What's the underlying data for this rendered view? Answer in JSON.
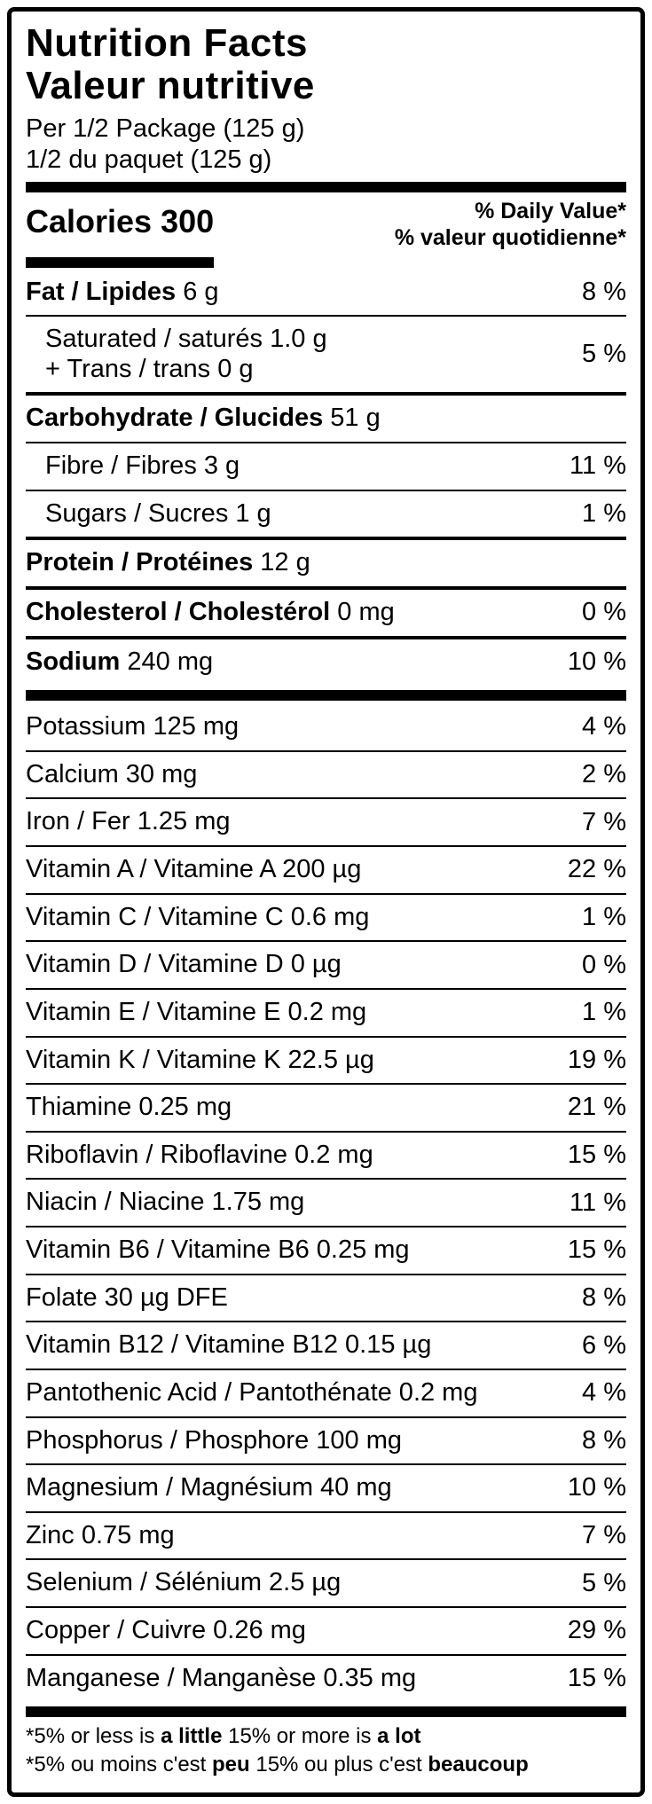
{
  "colors": {
    "foreground": "#000000",
    "background": "#ffffff"
  },
  "header": {
    "title_en": "Nutrition Facts",
    "title_fr": "Valeur nutritive",
    "serving_en": "Per 1/2 Package (125 g)",
    "serving_fr": "1/2 du paquet (125 g)"
  },
  "calories": {
    "label": "Calories 300"
  },
  "daily_value": {
    "line_en": "% Daily Value*",
    "line_fr": "% valeur quotidienne*"
  },
  "rows": [
    {
      "sep": "none",
      "indent": false,
      "percent": "8 %",
      "lines": [
        [
          [
            "b",
            "Fat / Lipides"
          ],
          [
            "r",
            " 6 g"
          ]
        ]
      ]
    },
    {
      "sep": "thin",
      "indent": true,
      "percent": "5 %",
      "lines": [
        [
          [
            "r",
            "Saturated / saturés 1.0 g"
          ]
        ],
        [
          [
            "r",
            "+ Trans / trans 0 g"
          ]
        ]
      ]
    },
    {
      "sep": "med",
      "indent": false,
      "percent": "",
      "lines": [
        [
          [
            "b",
            "Carbohydrate / Glucides"
          ],
          [
            "r",
            " 51 g"
          ]
        ]
      ]
    },
    {
      "sep": "thin",
      "indent": true,
      "percent": "11 %",
      "lines": [
        [
          [
            "r",
            "Fibre / Fibres 3 g"
          ]
        ]
      ]
    },
    {
      "sep": "thin",
      "indent": true,
      "percent": "1 %",
      "lines": [
        [
          [
            "r",
            "Sugars / Sucres 1 g"
          ]
        ]
      ]
    },
    {
      "sep": "med",
      "indent": false,
      "percent": "",
      "lines": [
        [
          [
            "b",
            "Protein / Protéines"
          ],
          [
            "r",
            " 12 g"
          ]
        ]
      ]
    },
    {
      "sep": "med",
      "indent": false,
      "percent": "0 %",
      "lines": [
        [
          [
            "b",
            "Cholesterol / Cholestérol"
          ],
          [
            "r",
            " 0 mg"
          ]
        ]
      ]
    },
    {
      "sep": "med",
      "indent": false,
      "percent": "10 %",
      "lines": [
        [
          [
            "b",
            "Sodium"
          ],
          [
            "r",
            " 240 mg"
          ]
        ]
      ]
    },
    {
      "sep": "thick",
      "indent": false,
      "percent": "4 %",
      "lines": [
        [
          [
            "r",
            "Potassium 125 mg"
          ]
        ]
      ]
    },
    {
      "sep": "thin",
      "indent": false,
      "percent": "2 %",
      "lines": [
        [
          [
            "r",
            "Calcium 30 mg"
          ]
        ]
      ]
    },
    {
      "sep": "thin",
      "indent": false,
      "percent": "7 %",
      "lines": [
        [
          [
            "r",
            "Iron / Fer 1.25 mg"
          ]
        ]
      ]
    },
    {
      "sep": "thin",
      "indent": false,
      "percent": "22 %",
      "lines": [
        [
          [
            "r",
            "Vitamin A / Vitamine A 200 µg"
          ]
        ]
      ]
    },
    {
      "sep": "thin",
      "indent": false,
      "percent": "1 %",
      "lines": [
        [
          [
            "r",
            "Vitamin C / Vitamine C 0.6 mg"
          ]
        ]
      ]
    },
    {
      "sep": "thin",
      "indent": false,
      "percent": "0 %",
      "lines": [
        [
          [
            "r",
            "Vitamin D / Vitamine D 0 µg"
          ]
        ]
      ]
    },
    {
      "sep": "thin",
      "indent": false,
      "percent": "1 %",
      "lines": [
        [
          [
            "r",
            "Vitamin E / Vitamine E 0.2 mg"
          ]
        ]
      ]
    },
    {
      "sep": "thin",
      "indent": false,
      "percent": "19 %",
      "lines": [
        [
          [
            "r",
            "Vitamin K / Vitamine K 22.5 µg"
          ]
        ]
      ]
    },
    {
      "sep": "thin",
      "indent": false,
      "percent": "21 %",
      "lines": [
        [
          [
            "r",
            "Thiamine 0.25 mg"
          ]
        ]
      ]
    },
    {
      "sep": "thin",
      "indent": false,
      "percent": "15 %",
      "lines": [
        [
          [
            "r",
            "Riboflavin / Riboflavine 0.2 mg"
          ]
        ]
      ]
    },
    {
      "sep": "thin",
      "indent": false,
      "percent": "11 %",
      "lines": [
        [
          [
            "r",
            "Niacin / Niacine 1.75 mg"
          ]
        ]
      ]
    },
    {
      "sep": "thin",
      "indent": false,
      "percent": "15 %",
      "lines": [
        [
          [
            "r",
            "Vitamin B6 / Vitamine B6 0.25 mg"
          ]
        ]
      ]
    },
    {
      "sep": "thin",
      "indent": false,
      "percent": "8 %",
      "lines": [
        [
          [
            "r",
            "Folate 30 µg DFE"
          ]
        ]
      ]
    },
    {
      "sep": "thin",
      "indent": false,
      "percent": "6 %",
      "lines": [
        [
          [
            "r",
            "Vitamin B12 / Vitamine B12 0.15 µg"
          ]
        ]
      ]
    },
    {
      "sep": "thin",
      "indent": false,
      "percent": "4 %",
      "lines": [
        [
          [
            "r",
            "Pantothenic Acid / Pantothénate 0.2 mg"
          ]
        ]
      ]
    },
    {
      "sep": "thin",
      "indent": false,
      "percent": "8 %",
      "lines": [
        [
          [
            "r",
            "Phosphorus / Phosphore 100 mg"
          ]
        ]
      ]
    },
    {
      "sep": "thin",
      "indent": false,
      "percent": "10 %",
      "lines": [
        [
          [
            "r",
            "Magnesium / Magnésium 40 mg"
          ]
        ]
      ]
    },
    {
      "sep": "thin",
      "indent": false,
      "percent": "7 %",
      "lines": [
        [
          [
            "r",
            "Zinc 0.75 mg"
          ]
        ]
      ]
    },
    {
      "sep": "thin",
      "indent": false,
      "percent": "5 %",
      "lines": [
        [
          [
            "r",
            "Selenium / Sélénium 2.5 µg"
          ]
        ]
      ]
    },
    {
      "sep": "thin",
      "indent": false,
      "percent": "29 %",
      "lines": [
        [
          [
            "r",
            "Copper / Cuivre 0.26 mg"
          ]
        ]
      ]
    },
    {
      "sep": "thin",
      "indent": false,
      "percent": "15 %",
      "lines": [
        [
          [
            "r",
            "Manganese / Manganèse 0.35 mg"
          ]
        ]
      ]
    }
  ],
  "footnotes": [
    {
      "segments": [
        [
          "r",
          "*5% or less is "
        ],
        [
          "b",
          "a little"
        ],
        [
          "r",
          " 15% or more is "
        ],
        [
          "b",
          "a lot"
        ]
      ]
    },
    {
      "segments": [
        [
          "r",
          "*5% ou moins c'est "
        ],
        [
          "b",
          "peu"
        ],
        [
          "r",
          " 15% ou plus c'est "
        ],
        [
          "b",
          "beaucoup"
        ]
      ]
    }
  ]
}
